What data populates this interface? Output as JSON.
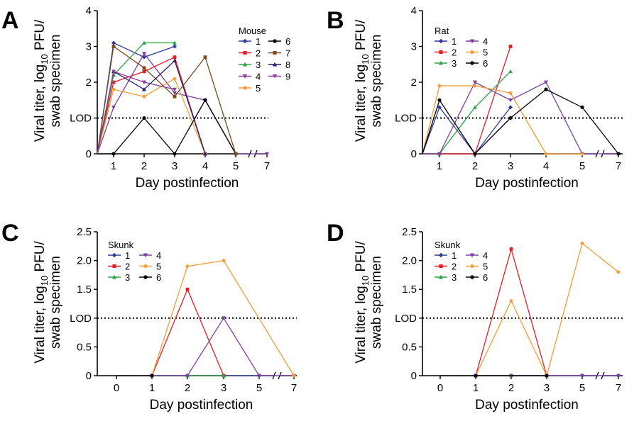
{
  "figure": {
    "lod_label": "LOD",
    "ylabel_line1": "Viral titer, log",
    "ylabel_sub": "10",
    "ylabel_tail": " PFU/",
    "ylabel_line2": "swab specimen",
    "xlabel": "Day postinfection"
  },
  "colors": {
    "1": "#2e3b9e",
    "2": "#e31e24",
    "3": "#2ca24a",
    "4": "#7b3fa0",
    "5": "#f39c35",
    "6": "#000000",
    "7": "#7b4a1e",
    "8": "#1f1f6e",
    "9": "#8a3d96"
  },
  "chart_data": [
    {
      "panel": "A",
      "type": "line",
      "legend_title": "Mouse",
      "x_ticks": [
        "1",
        "2",
        "3",
        "4",
        "5",
        "7"
      ],
      "y_ticks": [
        "0",
        "LOD",
        "2",
        "3",
        "4"
      ],
      "ylim": [
        0,
        4
      ],
      "lod": 1,
      "series": [
        {
          "name": "1",
          "marker": "diamond",
          "points": [
            [
              0,
              0
            ],
            [
              1,
              3.1
            ],
            [
              2,
              2.7
            ],
            [
              3,
              3.0
            ]
          ]
        },
        {
          "name": "2",
          "marker": "square",
          "points": [
            [
              0,
              0
            ],
            [
              1,
              2.0
            ],
            [
              2,
              2.3
            ],
            [
              3,
              2.7
            ],
            [
              4,
              0
            ]
          ]
        },
        {
          "name": "3",
          "marker": "triangle",
          "points": [
            [
              0,
              0
            ],
            [
              1,
              2.2
            ],
            [
              2,
              3.1
            ],
            [
              3,
              3.1
            ]
          ]
        },
        {
          "name": "4",
          "marker": "tri-down",
          "points": [
            [
              0,
              0
            ],
            [
              1,
              1.3
            ],
            [
              2,
              2.8
            ],
            [
              3,
              1.7
            ],
            [
              4,
              1.5
            ],
            [
              5,
              0
            ],
            [
              7,
              0
            ]
          ]
        },
        {
          "name": "5",
          "marker": "diamond",
          "points": [
            [
              0,
              0
            ],
            [
              1,
              1.8
            ],
            [
              2,
              1.6
            ],
            [
              3,
              2.1
            ],
            [
              4,
              0
            ]
          ]
        },
        {
          "name": "6",
          "marker": "circle",
          "points": [
            [
              0,
              0
            ],
            [
              1,
              0
            ],
            [
              2,
              1.0
            ],
            [
              3,
              0
            ],
            [
              4,
              1.5
            ],
            [
              5,
              0
            ]
          ]
        },
        {
          "name": "7",
          "marker": "square",
          "points": [
            [
              0,
              0
            ],
            [
              1,
              3.0
            ],
            [
              2,
              2.4
            ],
            [
              3,
              1.6
            ],
            [
              4,
              2.7
            ],
            [
              5,
              0
            ]
          ]
        },
        {
          "name": "8",
          "marker": "triangle",
          "points": [
            [
              0,
              0
            ],
            [
              1,
              2.3
            ],
            [
              2,
              1.8
            ],
            [
              3,
              2.6
            ],
            [
              4,
              0
            ]
          ]
        },
        {
          "name": "9",
          "marker": "tri-down",
          "points": [
            [
              0,
              0
            ],
            [
              1,
              2.3
            ],
            [
              2,
              2.0
            ],
            [
              3,
              1.8
            ]
          ]
        }
      ]
    },
    {
      "panel": "B",
      "type": "line",
      "legend_title": "Rat",
      "x_ticks": [
        "1",
        "2",
        "3",
        "4",
        "5",
        "7"
      ],
      "y_ticks": [
        "0",
        "LOD",
        "2",
        "3",
        "4"
      ],
      "ylim": [
        0,
        4
      ],
      "lod": 1,
      "series": [
        {
          "name": "1",
          "marker": "diamond",
          "points": [
            [
              0,
              0
            ],
            [
              1,
              1.3
            ],
            [
              2,
              0
            ],
            [
              3,
              1.3
            ]
          ]
        },
        {
          "name": "2",
          "marker": "square",
          "points": [
            [
              0,
              0
            ],
            [
              1,
              0
            ],
            [
              2,
              0
            ],
            [
              3,
              3.0
            ]
          ]
        },
        {
          "name": "3",
          "marker": "triangle",
          "points": [
            [
              0,
              0
            ],
            [
              1,
              0
            ],
            [
              2,
              1.3
            ],
            [
              3,
              2.3
            ]
          ]
        },
        {
          "name": "4",
          "marker": "tri-down",
          "points": [
            [
              0,
              0
            ],
            [
              1,
              0
            ],
            [
              2,
              2.0
            ],
            [
              3,
              1.5
            ],
            [
              4,
              2.0
            ],
            [
              5,
              0
            ],
            [
              7,
              0
            ]
          ]
        },
        {
          "name": "5",
          "marker": "diamond",
          "points": [
            [
              0,
              0
            ],
            [
              1,
              1.9
            ],
            [
              2,
              1.9
            ],
            [
              3,
              1.7
            ],
            [
              4,
              0
            ],
            [
              5,
              0
            ]
          ]
        },
        {
          "name": "6",
          "marker": "circle",
          "points": [
            [
              0,
              0
            ],
            [
              1,
              1.5
            ],
            [
              2,
              0
            ],
            [
              3,
              1.0
            ],
            [
              4,
              1.8
            ],
            [
              5,
              1.3
            ],
            [
              7,
              0
            ]
          ]
        }
      ]
    },
    {
      "panel": "C",
      "type": "line",
      "legend_title": "Skunk",
      "x_ticks": [
        "0",
        "1",
        "2",
        "3",
        "5",
        "7"
      ],
      "y_ticks": [
        "0",
        "0.5",
        "LOD",
        "1.5",
        "2.0",
        "2.5"
      ],
      "ylim": [
        0,
        2.5
      ],
      "lod": 1,
      "series": [
        {
          "name": "1",
          "marker": "diamond",
          "points": [
            [
              0,
              0
            ],
            [
              1,
              0
            ],
            [
              2,
              0
            ],
            [
              3,
              0
            ],
            [
              5,
              0
            ],
            [
              7,
              0
            ]
          ]
        },
        {
          "name": "2",
          "marker": "square",
          "points": [
            [
              0,
              0
            ],
            [
              1,
              0
            ],
            [
              2,
              1.5
            ],
            [
              3,
              0
            ]
          ]
        },
        {
          "name": "3",
          "marker": "triangle",
          "points": [
            [
              0,
              0
            ],
            [
              1,
              0
            ],
            [
              2,
              0
            ],
            [
              3,
              0
            ]
          ]
        },
        {
          "name": "4",
          "marker": "tri-down",
          "points": [
            [
              0,
              0
            ],
            [
              1,
              0
            ],
            [
              2,
              0
            ],
            [
              3,
              1.0
            ],
            [
              5,
              0
            ],
            [
              7,
              0
            ]
          ]
        },
        {
          "name": "5",
          "marker": "diamond",
          "points": [
            [
              0,
              0
            ],
            [
              1,
              0
            ],
            [
              2,
              1.9
            ],
            [
              3,
              2.0
            ],
            [
              7,
              0
            ]
          ]
        },
        {
          "name": "6",
          "marker": "circle",
          "points": [
            [
              0,
              0
            ],
            [
              1,
              0
            ]
          ]
        }
      ]
    },
    {
      "panel": "D",
      "type": "line",
      "legend_title": "Skunk",
      "x_ticks": [
        "0",
        "1",
        "2",
        "3",
        "5",
        "7"
      ],
      "y_ticks": [
        "0",
        "0.5",
        "LOD",
        "1.5",
        "2.0",
        "2.5"
      ],
      "ylim": [
        0,
        2.5
      ],
      "lod": 1,
      "series": [
        {
          "name": "1",
          "marker": "diamond",
          "points": [
            [
              0,
              0
            ],
            [
              1,
              0
            ],
            [
              2,
              0
            ],
            [
              3,
              0
            ],
            [
              5,
              0
            ],
            [
              7,
              0
            ]
          ]
        },
        {
          "name": "2",
          "marker": "square",
          "points": [
            [
              0,
              0
            ],
            [
              1,
              0
            ],
            [
              2,
              2.2
            ],
            [
              3,
              0
            ]
          ]
        },
        {
          "name": "3",
          "marker": "triangle",
          "points": [
            [
              0,
              0
            ],
            [
              1,
              0
            ],
            [
              2,
              0
            ],
            [
              3,
              0
            ]
          ]
        },
        {
          "name": "4",
          "marker": "tri-down",
          "points": [
            [
              0,
              0
            ],
            [
              1,
              0
            ],
            [
              2,
              0
            ],
            [
              3,
              0
            ],
            [
              5,
              0
            ],
            [
              7,
              0
            ]
          ]
        },
        {
          "name": "5",
          "marker": "diamond",
          "points": [
            [
              0,
              0
            ],
            [
              1,
              0
            ],
            [
              2,
              1.3
            ],
            [
              3,
              0
            ],
            [
              5,
              2.3
            ],
            [
              7,
              1.8
            ]
          ]
        },
        {
          "name": "6",
          "marker": "circle",
          "points": [
            [
              0,
              0
            ],
            [
              1,
              0
            ],
            [
              3,
              0
            ]
          ]
        }
      ]
    }
  ]
}
